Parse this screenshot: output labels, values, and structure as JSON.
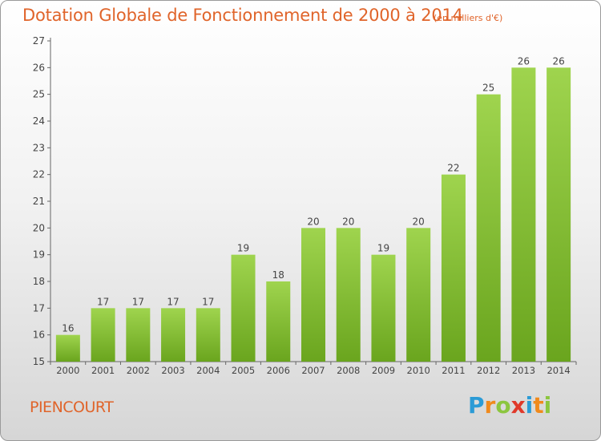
{
  "chart_data": {
    "type": "bar",
    "title": "Dotation Globale de Fonctionnement de 2000 à 2014",
    "unit_note": "(en milliers d'€)",
    "categories": [
      "2000",
      "2001",
      "2002",
      "2003",
      "2004",
      "2005",
      "2006",
      "2007",
      "2008",
      "2009",
      "2010",
      "2011",
      "2012",
      "2013",
      "2014"
    ],
    "values": [
      16,
      17,
      17,
      17,
      17,
      19,
      18,
      20,
      20,
      19,
      20,
      22,
      25,
      26,
      26
    ],
    "ylim": [
      15,
      27
    ],
    "yticks": [
      15,
      16,
      17,
      18,
      19,
      20,
      21,
      22,
      23,
      24,
      25,
      26,
      27
    ],
    "grid": false,
    "bar_color": "#8cc63f",
    "text_color": "#e0642a"
  },
  "footer": {
    "commune": "PIENCOURT",
    "logo": "Proxiti",
    "logo_letters": [
      {
        "char": "P",
        "color": "#2b9bd6"
      },
      {
        "char": "r",
        "color": "#f08a1c"
      },
      {
        "char": "o",
        "color": "#8cc63f"
      },
      {
        "char": "x",
        "color": "#e0392a"
      },
      {
        "char": "i",
        "color": "#2b9bd6"
      },
      {
        "char": "t",
        "color": "#f08a1c"
      },
      {
        "char": "i",
        "color": "#8cc63f"
      }
    ]
  }
}
